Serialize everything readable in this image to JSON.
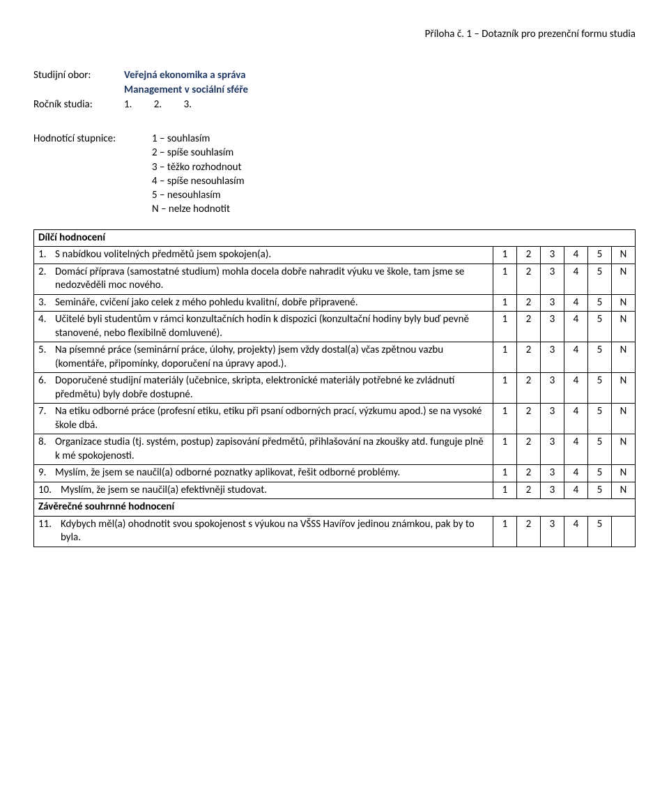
{
  "header": {
    "attachment": "Příloha č. 1 – Dotazník pro prezenční formu studia"
  },
  "meta": {
    "field_label": "Studijní obor:",
    "field_value1": "Veřejná ekonomika a správa",
    "field_value2": "Management v sociální sféře",
    "year_label": "Ročník studia:",
    "year_options": [
      "1.",
      "2.",
      "3."
    ]
  },
  "scale": {
    "label": "Hodnotící stupnice:",
    "items": [
      "1 – souhlasím",
      "2 – spíše souhlasím",
      "3 – těžko rozhodnout",
      "4 – spíše nesouhlasím",
      "5 – nesouhlasím",
      "N – nelze hodnotit"
    ]
  },
  "ratings_full": [
    "1",
    "2",
    "3",
    "4",
    "5",
    "N"
  ],
  "ratings_short": [
    "1",
    "2",
    "3",
    "4",
    "5",
    ""
  ],
  "sections": {
    "partial": "Dílčí hodnocení",
    "summary": "Závěrečné souhrnné hodnocení"
  },
  "questions": [
    {
      "n": "1.",
      "t": "S nabídkou volitelných předmětů jsem spokojen(a).",
      "r": "full"
    },
    {
      "n": "2.",
      "t": "Domácí příprava (samostatné studium) mohla docela dobře nahradit výuku ve škole, tam jsme se nedozvěděli moc nového.",
      "r": "full"
    },
    {
      "n": "3.",
      "t": "Semináře, cvičení jako celek z mého pohledu kvalitní, dobře připravené.",
      "r": "full"
    },
    {
      "n": "4.",
      "t": "Učitelé byli studentům v rámci konzultačních hodin k dispozici (konzultační hodiny byly buď pevně stanovené, nebo flexibilně domluvené).",
      "r": "full"
    },
    {
      "n": "5.",
      "t": "Na písemné práce (seminární práce, úlohy, projekty) jsem vždy dostal(a) včas zpětnou vazbu (komentáře, připomínky, doporučení na úpravy apod.).",
      "r": "full"
    },
    {
      "n": "6.",
      "t": "Doporučené studijní materiály (učebnice, skripta, elektronické materiály potřebné ke zvládnutí předmětu) byly dobře dostupné.",
      "r": "full"
    },
    {
      "n": "7.",
      "t": "Na etiku odborné práce (profesní etiku, etiku při psaní odborných prací, výzkumu apod.) se na vysoké škole dbá.",
      "r": "full"
    },
    {
      "n": "8.",
      "t": "Organizace studia (tj. systém, postup) zapisování předmětů, přihlašování na zkoušky atd. funguje plně k mé spokojenosti.",
      "r": "full"
    },
    {
      "n": "9.",
      "t": "Myslím, že jsem se naučil(a) odborné poznatky aplikovat, řešit odborné problémy.",
      "r": "full"
    },
    {
      "n": "10.",
      "t": "Myslím, že jsem se naučil(a) efektivněji studovat.",
      "r": "full"
    }
  ],
  "summary_q": {
    "n": "11.",
    "t": "Kdybych měl(a) ohodnotit svou spokojenost s výukou na VŠSS Havířov jedinou známkou, pak by to byla.",
    "r": "short"
  }
}
